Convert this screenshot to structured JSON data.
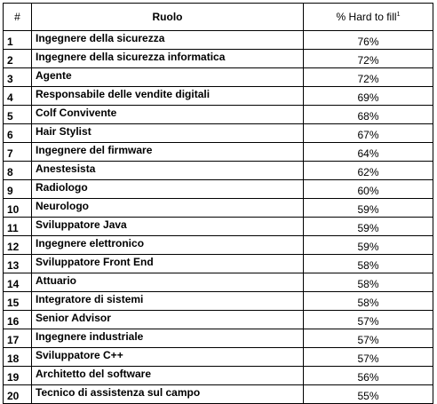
{
  "table": {
    "headers": {
      "num": "#",
      "role": "Ruolo",
      "pct": "% Hard to fill",
      "pct_footnote": "1"
    },
    "rows": [
      {
        "num": "1",
        "role": "Ingegnere della sicurezza",
        "pct": "76%"
      },
      {
        "num": "2",
        "role": "Ingegnere della sicurezza informatica",
        "pct": "72%"
      },
      {
        "num": "3",
        "role": "Agente",
        "pct": "72%"
      },
      {
        "num": "4",
        "role": "Responsabile delle vendite digitali",
        "pct": "69%"
      },
      {
        "num": "5",
        "role": "Colf Convivente",
        "pct": "68%"
      },
      {
        "num": "6",
        "role": "Hair Stylist",
        "pct": "67%"
      },
      {
        "num": "7",
        "role": "Ingegnere del firmware",
        "pct": "64%"
      },
      {
        "num": "8",
        "role": "Anestesista",
        "pct": "62%"
      },
      {
        "num": "9",
        "role": "Radiologo",
        "pct": "60%"
      },
      {
        "num": "10",
        "role": "Neurologo",
        "pct": "59%"
      },
      {
        "num": "11",
        "role": "Sviluppatore Java",
        "pct": "59%"
      },
      {
        "num": "12",
        "role": "Ingegnere elettronico",
        "pct": "59%"
      },
      {
        "num": "13",
        "role": "Sviluppatore Front End",
        "pct": "58%"
      },
      {
        "num": "14",
        "role": "Attuario",
        "pct": "58%"
      },
      {
        "num": "15",
        "role": "Integratore di sistemi",
        "pct": "58%"
      },
      {
        "num": "16",
        "role": "Senior Advisor",
        "pct": "57%"
      },
      {
        "num": "17",
        "role": "Ingegnere industriale",
        "pct": "57%"
      },
      {
        "num": "18",
        "role": "Sviluppatore C++",
        "pct": "57%"
      },
      {
        "num": "19",
        "role": "Architetto del software",
        "pct": "56%"
      },
      {
        "num": "20",
        "role": "Tecnico di assistenza sul campo",
        "pct": "55%"
      }
    ]
  }
}
